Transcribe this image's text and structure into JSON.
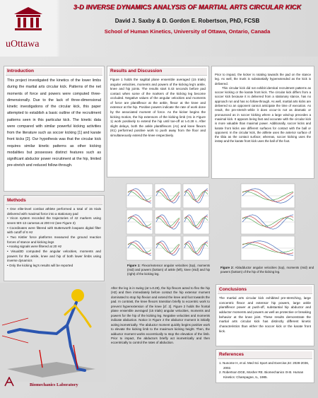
{
  "header": {
    "logo": "uOttawa",
    "title": "3-D INVERSE DYNAMICS ANALYSIS OF MARTIAL ARTS CIRCULAR KICK",
    "authors": "David J. Saxby & D. Gordon E. Robertson, PhD, FCSB",
    "affiliation": "School of Human Kinetics, University of Ottawa, Ontario, Canada"
  },
  "introduction": {
    "heading": "Introduction",
    "text": "This project investigated the kinetics of the lower limbs during the martial arts circular kick. Patterns of the net moments of force and powers were computed three-dimensionally. Due to the lack of three-dimensional kinetic investigations of the circular kick, this paper attempted to establish a basic outline of the recruitment patterns seen in this particular kick. The kinetic data were compared with similar powerful kicking activities from the literature such as soccer kicking [1] and karate front kicks [2]. Our hypothesis was that the circular kick requires similar kinetic patterns as other kicking modalities but possesses distinct features such as significant abductor power recruitment at the hip, limited pre-stretch and reduced follow-through."
  },
  "methods": {
    "heading": "Methods",
    "items": [
      "One elite-level combat athlete performed a total of 15 trials delivered with maximal force into a stationary pad",
      "Vicon system recorded the trajectories of 42 markers using seven MX-13 cameras at 200 Hz (see Figure 3)",
      "Coordinates were filtered with Butterworth lowpass digital filter with cutoff of 6 Hz",
      "Two Kistler force platforms measured the ground reaction forces of stance and kicking legs",
      "Analog signals were filtered at 20 Hz",
      "Visual3D computed the angular velocities, moments and powers for the ankle, knee and hip of both lower limbs using inverse dynamics",
      "Only the kicking leg's results will be reported"
    ]
  },
  "results": {
    "heading": "Results and Discussion",
    "text": "Figure 1 holds the sagittal plane ensemble averaged (15 trials) angular velocities, moments and powers of the kicking leg's ankle, knee and hip joints. The results start 0.43 seconds before pad contact when some of the markers of the kicking leg become occluded. Negative values of the angular velocities and moments of force are plantiflexor at the ankle, flexor at the knee and extensor at the hip. Positive powers indicate the rate of work done by the associated moment of force. As the kicker begins the kicking motion, the hip extensors of the kicking limb (H1 in Figure 1) work positively to extend the hip until toe-off at t=0.28 s. After slight delays, both the ankle plantiflexors (A1) and knee flexors (K1) performed positive work to push away from the floor and simultaneously extend the knee respectively."
  },
  "discussion": {
    "paragraphs": [
      "Prior to impact, the kicker is rotating towards the pad on the stance leg. As well, the trunk is substantially hyperextended as the kick is delivered.",
      "This circular kick did not exhibit identical recruitment patterns as soccer kicking or the karate front kick. The circular kick differs from a soccer kick because it is delivered from a stationary stance, has no approach run and has no follow-through. As well, martial arts kicks are delivered so an opponent cannot anticipate the time of execution. As result, the pre-stretch–while it does occur–is not as dramatic or pronounced as in soccer kicking where a large wind-up precedes a maximal kick. It appears being fast and accurate with the circular kick is more valuable than maximal power. Additionally, soccer kicks and karate front kicks use different surfaces for contact with the ball or opponent. In the circular kick, the athlete uses the anterior surface of the tibia as the contact surface; whereas, soccer kicking uses the instep and the karate front kick uses the ball of the foot."
    ]
  },
  "figure1": {
    "label": "Figure 1:",
    "caption": "Flexor/extensor angular velocities (top), moments (mid) and powers (bottom) of ankle (left), knee (mid) and hip (right) of the kicking leg."
  },
  "figure2": {
    "label": "Figure 2:",
    "caption": "Ab/adductor angular velocities (top), moments (mid) and powers (bottom) of the hip of the kicking leg."
  },
  "middle": {
    "text": "After the leg is in swing (at t=0.28), the hip flexors acted to flex the hip (H2) and then immediately before contact the hip extensor moment dominated to stop hip flexion and extend the knee and foot towards the pad. In contrast, the knee flexors transition briefly to eccentric work to prevent hyperextension of the knee [cf. 2]. Figure 2 holds the frontal plane ensemble averaged (15 trials) angular velocities, moments and powers for the hip of the kicking leg. Negative velocities and moments indicate abduction. Notice in Figure 2 the abductor moment is initially acting isometrically. The abductor moment quickly begins positive work to elevate the kicking limb to the maximum kicking height. Then, the adductor moment works eccentrically to stop the elevation of the limb. Prior to impact, the abductors briefly act isometrically and then eccentrically to control the rates of abduction."
  },
  "conclusions": {
    "heading": "Conclusions",
    "text": "The martial arts circular kick exhibited pre-stretching, large concentric flexor and extensor hip powers, large ankle plantiflexor power at push-off, substantial hip abductor and adductor moments and powers as well as protective or breaking behavior at the knee joint. These results demonstrate the martial arts circular kick has distinctly different kinetic characteristics than either the soccer kick or the karate front kick."
  },
  "references": {
    "heading": "References",
    "items": [
      "1. Nunome H, et al. Med Sci Sport and Exercise,34: 2028-2036, 2002.",
      "2. Robertson DGE, Mosher RE. Biomechanics IX-B. Human Kinetics: Champagne, IL, 1985."
    ]
  },
  "footer": {
    "lab": "Biomechanics Laboratory"
  }
}
